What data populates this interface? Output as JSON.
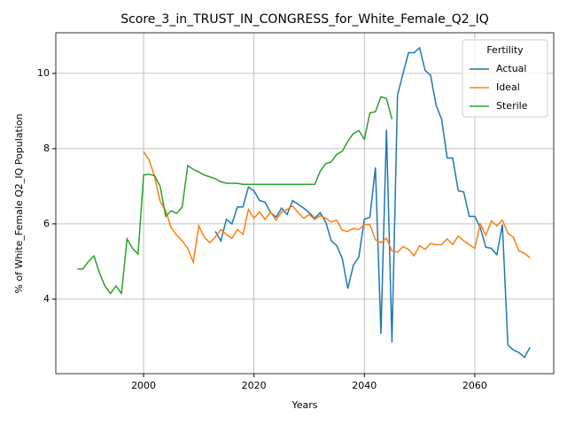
{
  "chart_data": {
    "type": "line",
    "title": "Score_3_in_TRUST_IN_CONGRESS_for_White_Female_Q2_IQ",
    "xlabel": "Years",
    "ylabel": "% of White_Female Q2_IQ Population",
    "legend_title": "Fertility",
    "legend": "upper right",
    "grid": true,
    "xlim": [
      1984.1,
      2074.3
    ],
    "ylim": [
      2.02,
      11.08
    ],
    "xticks": [
      2000,
      2020,
      2040,
      2060
    ],
    "yticks": [
      4,
      6,
      8,
      10
    ],
    "x": [
      1988,
      1989,
      1990,
      1991,
      1992,
      1993,
      1994,
      1995,
      1996,
      1997,
      1998,
      1999,
      2000,
      2001,
      2002,
      2003,
      2004,
      2005,
      2006,
      2007,
      2008,
      2009,
      2010,
      2011,
      2012,
      2013,
      2014,
      2015,
      2016,
      2017,
      2018,
      2019,
      2020,
      2021,
      2022,
      2023,
      2024,
      2025,
      2026,
      2027,
      2028,
      2029,
      2030,
      2031,
      2032,
      2033,
      2034,
      2035,
      2036,
      2037,
      2038,
      2039,
      2040,
      2041,
      2042,
      2043,
      2044,
      2045,
      2046,
      2047,
      2048,
      2049,
      2050,
      2051,
      2052,
      2053,
      2054,
      2055,
      2056,
      2057,
      2058,
      2059,
      2060,
      2061,
      2062,
      2063,
      2064,
      2065,
      2066,
      2067,
      2068,
      2069,
      2070
    ],
    "series": [
      {
        "name": "Actual",
        "color": "#1f77b4",
        "values": [
          null,
          null,
          null,
          null,
          null,
          null,
          null,
          null,
          null,
          null,
          null,
          null,
          null,
          null,
          null,
          null,
          null,
          null,
          null,
          null,
          null,
          null,
          null,
          null,
          null,
          5.8,
          5.55,
          6.12,
          6.0,
          6.45,
          6.45,
          6.98,
          6.88,
          6.62,
          6.58,
          6.3,
          6.18,
          6.42,
          6.25,
          6.62,
          6.52,
          6.42,
          6.3,
          6.15,
          6.3,
          6.05,
          5.55,
          5.42,
          5.08,
          4.28,
          4.9,
          5.12,
          6.12,
          6.18,
          7.5,
          3.08,
          8.5,
          2.85,
          9.42,
          10.0,
          10.55,
          10.55,
          10.68,
          10.08,
          9.95,
          9.15,
          8.78,
          7.75,
          7.75,
          6.88,
          6.85,
          6.2,
          6.2,
          5.9,
          5.38,
          5.35,
          5.18,
          5.98,
          2.78,
          2.65,
          2.58,
          2.45,
          2.72
        ]
      },
      {
        "name": "Ideal",
        "color": "#ff7f0e",
        "values": [
          null,
          null,
          null,
          null,
          null,
          null,
          null,
          null,
          null,
          null,
          null,
          null,
          7.92,
          7.7,
          7.25,
          6.6,
          6.35,
          5.9,
          5.7,
          5.55,
          5.35,
          4.98,
          5.95,
          5.65,
          5.5,
          5.65,
          5.85,
          5.72,
          5.62,
          5.85,
          5.72,
          6.38,
          6.15,
          6.32,
          6.12,
          6.32,
          6.1,
          6.32,
          6.38,
          6.48,
          6.3,
          6.15,
          6.25,
          6.12,
          6.22,
          6.15,
          6.05,
          6.1,
          5.83,
          5.8,
          5.88,
          5.85,
          5.98,
          5.98,
          5.58,
          5.5,
          5.62,
          5.28,
          5.25,
          5.4,
          5.32,
          5.15,
          5.42,
          5.32,
          5.48,
          5.45,
          5.45,
          5.6,
          5.45,
          5.68,
          5.55,
          5.45,
          5.35,
          6.0,
          5.7,
          6.08,
          5.95,
          6.1,
          5.75,
          5.65,
          5.28,
          5.22,
          5.1
        ]
      },
      {
        "name": "Sterile",
        "color": "#2ca02c",
        "values": [
          4.8,
          4.8,
          5.0,
          5.15,
          4.7,
          4.35,
          4.15,
          4.35,
          4.15,
          5.6,
          5.35,
          5.2,
          7.3,
          7.32,
          7.28,
          7.0,
          6.2,
          6.35,
          6.28,
          6.45,
          7.55,
          7.45,
          7.38,
          7.3,
          7.25,
          7.2,
          7.12,
          7.08,
          7.08,
          7.08,
          7.05,
          7.05,
          7.05,
          7.05,
          7.05,
          7.05,
          7.05,
          7.05,
          7.05,
          7.05,
          7.05,
          7.05,
          7.05,
          7.05,
          7.4,
          7.6,
          7.65,
          7.85,
          7.93,
          8.2,
          8.4,
          8.48,
          8.25,
          8.95,
          8.98,
          9.38,
          9.33,
          8.78,
          null,
          null,
          null,
          null,
          null,
          null,
          null,
          null,
          null,
          null,
          null,
          null,
          null,
          null,
          null,
          null,
          null,
          null,
          null,
          null,
          null,
          null,
          null,
          null,
          null
        ]
      }
    ]
  }
}
